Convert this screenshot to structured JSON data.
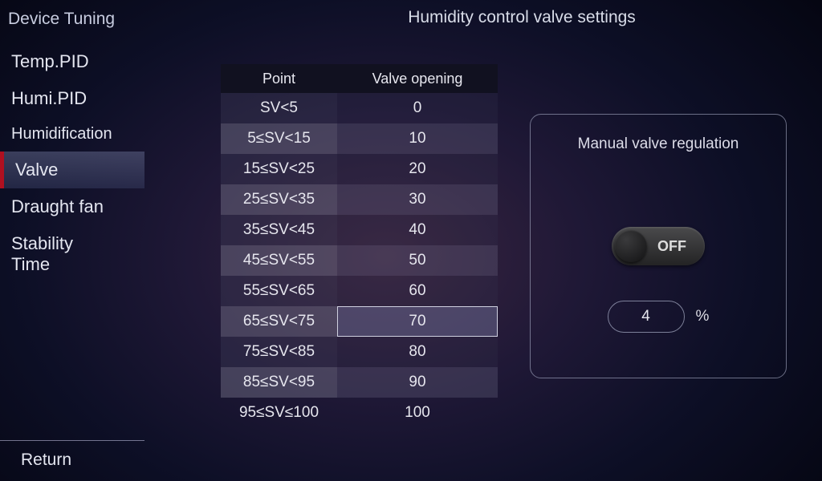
{
  "sidebar": {
    "title": "Device Tuning",
    "items": [
      {
        "label": "Temp.PID",
        "active": false
      },
      {
        "label": "Humi.PID",
        "active": false
      },
      {
        "label": "Humidification",
        "active": false
      },
      {
        "label": "Valve",
        "active": true
      },
      {
        "label": "Draught fan",
        "active": false
      },
      {
        "label": "Stability Time",
        "active": false
      }
    ],
    "return_label": "Return"
  },
  "page": {
    "title": "Humidity control valve settings"
  },
  "table": {
    "columns": [
      "Point",
      "Valve opening"
    ],
    "rows": [
      {
        "point": "SV<5",
        "opening": "0",
        "selected": false
      },
      {
        "point": "5≤SV<15",
        "opening": "10",
        "selected": false
      },
      {
        "point": "15≤SV<25",
        "opening": "20",
        "selected": false
      },
      {
        "point": "25≤SV<35",
        "opening": "30",
        "selected": false
      },
      {
        "point": "35≤SV<45",
        "opening": "40",
        "selected": false
      },
      {
        "point": "45≤SV<55",
        "opening": "50",
        "selected": false
      },
      {
        "point": "55≤SV<65",
        "opening": "60",
        "selected": false
      },
      {
        "point": "65≤SV<75",
        "opening": "70",
        "selected": true
      },
      {
        "point": "75≤SV<85",
        "opening": "80",
        "selected": false
      },
      {
        "point": "85≤SV<95",
        "opening": "90",
        "selected": false
      },
      {
        "point": "95≤SV≤100",
        "opening": "100",
        "selected": false
      }
    ]
  },
  "manual": {
    "title": "Manual valve regulation",
    "toggle_state": "OFF",
    "percent_value": "4",
    "percent_unit": "%"
  },
  "colors": {
    "accent_red": "#b01020",
    "border": "#aaafca",
    "text": "#d8d8e0"
  }
}
